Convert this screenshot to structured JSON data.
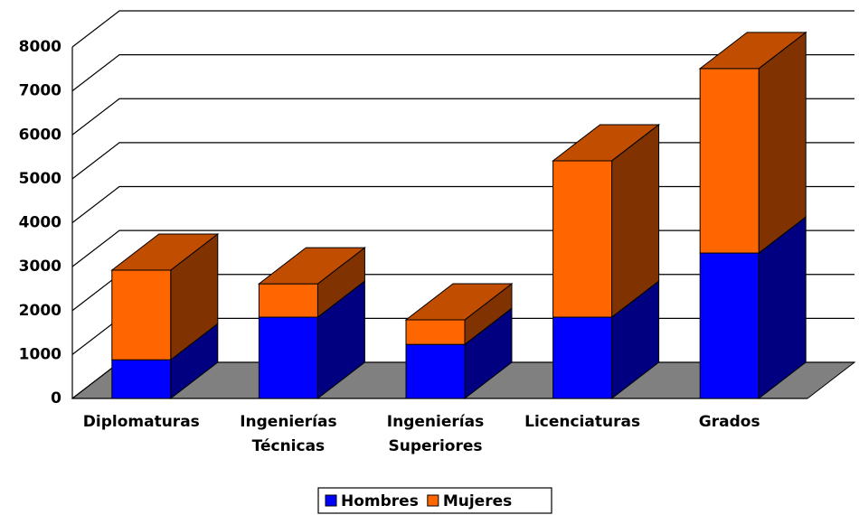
{
  "chart_data": {
    "type": "bar3d_stacked",
    "categories": [
      "Diplomaturas",
      "Ingenierías Técnicas",
      "Ingenierías Superiores",
      "Licenciaturas",
      "Grados"
    ],
    "series": [
      {
        "name": "Hombres",
        "color": "#0000ff",
        "side_color": "#000080",
        "values": [
          880,
          1850,
          1230,
          1850,
          3310
        ]
      },
      {
        "name": "Mujeres",
        "color": "#ff6600",
        "side_color": "#803300",
        "top_color": "#c04d00",
        "values": [
          2040,
          760,
          560,
          3560,
          4200
        ]
      }
    ],
    "ylim": [
      0,
      8000
    ],
    "yticks": [
      0,
      1000,
      2000,
      3000,
      4000,
      5000,
      6000,
      7000,
      8000
    ],
    "grid": true,
    "legend": "bottom"
  }
}
